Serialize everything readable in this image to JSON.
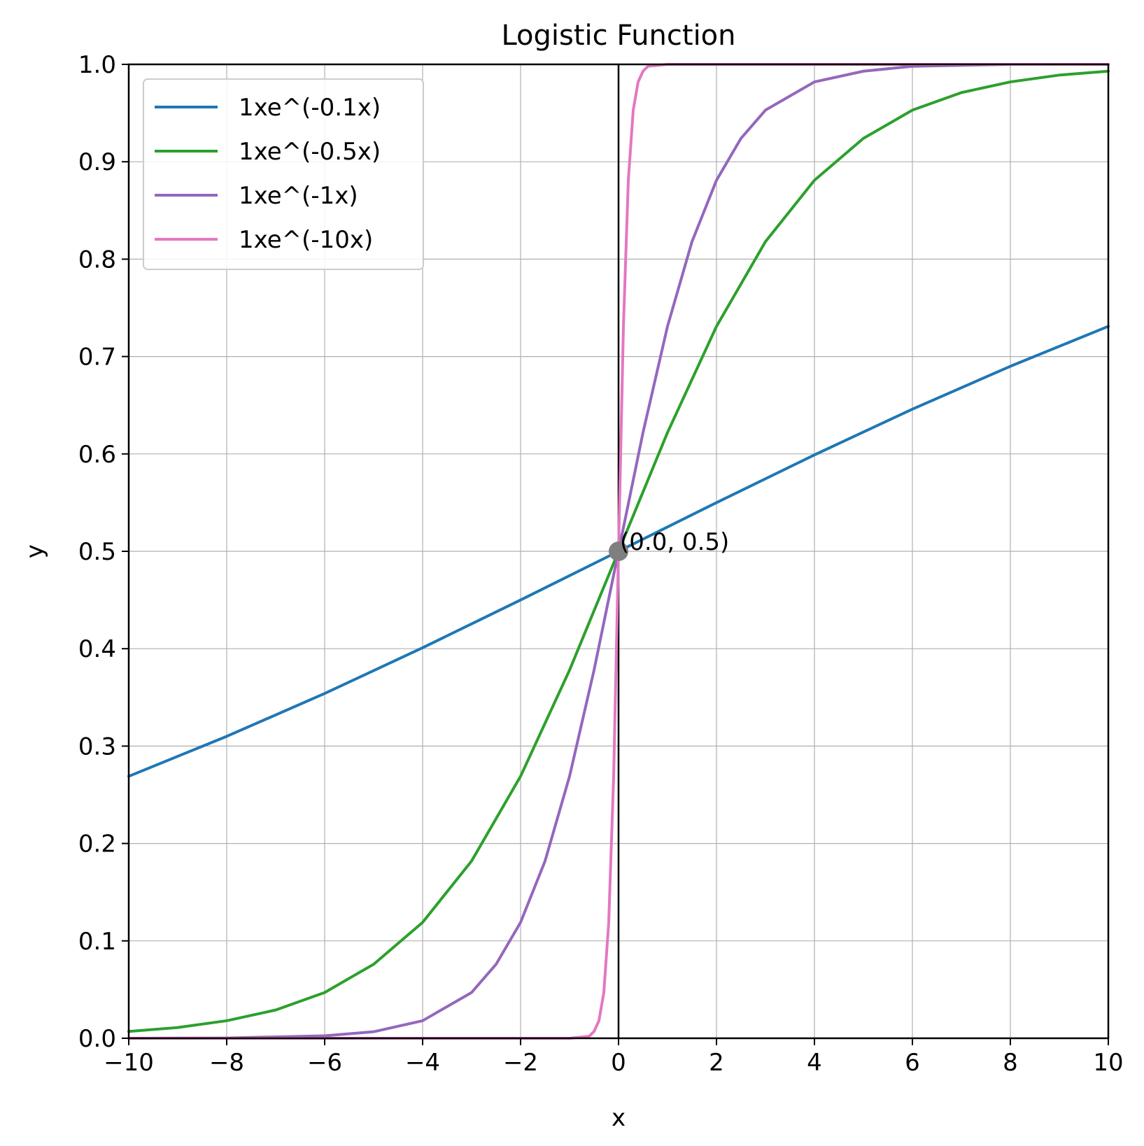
{
  "chart_data": {
    "type": "line",
    "title": "Logistic Function",
    "xlabel": "x",
    "ylabel": "y",
    "xlim": [
      -10,
      10
    ],
    "ylim": [
      0,
      1
    ],
    "x_ticks": [
      -10,
      -8,
      -6,
      -4,
      -2,
      0,
      2,
      4,
      6,
      8,
      10
    ],
    "x_tick_labels": [
      "−10",
      "−8",
      "−6",
      "−4",
      "−2",
      "0",
      "2",
      "4",
      "6",
      "8",
      "10"
    ],
    "y_ticks": [
      0.0,
      0.1,
      0.2,
      0.3,
      0.4,
      0.5,
      0.6,
      0.7,
      0.8,
      0.9,
      1.0
    ],
    "y_tick_labels": [
      "0.0",
      "0.1",
      "0.2",
      "0.3",
      "0.4",
      "0.5",
      "0.6",
      "0.7",
      "0.8",
      "0.9",
      "1.0"
    ],
    "grid": true,
    "vertical_line_x": 0,
    "legend_position": "top-left",
    "series": [
      {
        "name": "1xe^(-0.1x)",
        "color": "#1f77b4",
        "x": [
          -10,
          -8,
          -6,
          -4,
          -2,
          0,
          2,
          4,
          6,
          8,
          10
        ],
        "values": [
          0.269,
          0.31,
          0.354,
          0.401,
          0.45,
          0.5,
          0.55,
          0.599,
          0.646,
          0.69,
          0.731
        ]
      },
      {
        "name": "1xe^(-0.5x)",
        "color": "#2ca02c",
        "x": [
          -10,
          -9,
          -8,
          -7,
          -6,
          -5,
          -4,
          -3,
          -2,
          -1,
          0,
          1,
          2,
          3,
          4,
          5,
          6,
          7,
          8,
          9,
          10
        ],
        "values": [
          0.007,
          0.011,
          0.018,
          0.029,
          0.047,
          0.076,
          0.119,
          0.182,
          0.269,
          0.378,
          0.5,
          0.622,
          0.731,
          0.818,
          0.881,
          0.924,
          0.953,
          0.971,
          0.982,
          0.989,
          0.993
        ]
      },
      {
        "name": "1xe^(-1x)",
        "color": "#9467bd",
        "x": [
          -10,
          -8,
          -6,
          -5,
          -4,
          -3,
          -2.5,
          -2,
          -1.5,
          -1,
          -0.5,
          0,
          0.5,
          1,
          1.5,
          2,
          2.5,
          3,
          4,
          5,
          6,
          8,
          10
        ],
        "values": [
          0.0,
          0.0003,
          0.0025,
          0.0067,
          0.018,
          0.047,
          0.076,
          0.119,
          0.182,
          0.269,
          0.378,
          0.5,
          0.622,
          0.731,
          0.818,
          0.881,
          0.924,
          0.953,
          0.982,
          0.993,
          0.998,
          1.0,
          1.0
        ]
      },
      {
        "name": "1xe^(-10x)",
        "color": "#e377c2",
        "x": [
          -10,
          -1,
          -0.6,
          -0.5,
          -0.4,
          -0.3,
          -0.2,
          -0.1,
          0,
          0.1,
          0.2,
          0.3,
          0.4,
          0.5,
          0.6,
          1,
          10
        ],
        "values": [
          0.0,
          0.0,
          0.002,
          0.007,
          0.018,
          0.047,
          0.119,
          0.269,
          0.5,
          0.731,
          0.881,
          0.953,
          0.982,
          0.993,
          0.998,
          1.0,
          1.0
        ]
      }
    ],
    "annotations": [
      {
        "text": "(0.0, 0.5)",
        "x": 0,
        "y": 0.5,
        "marker_color": "#7f7f7f"
      }
    ]
  }
}
